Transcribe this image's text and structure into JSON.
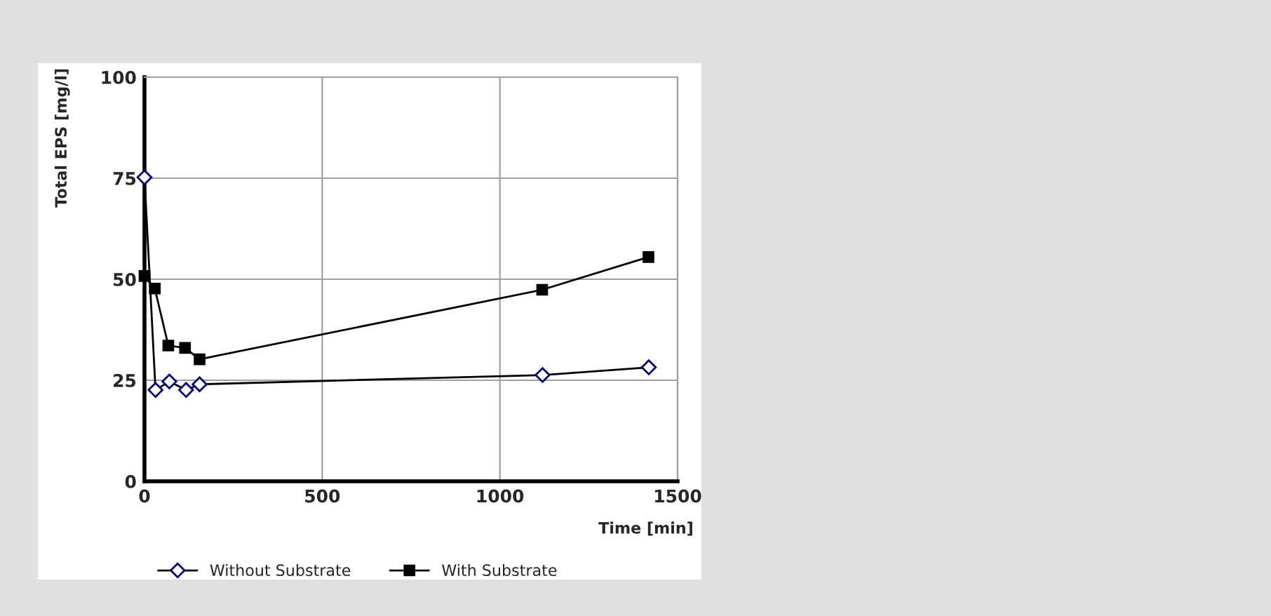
{
  "chart_data": {
    "type": "line",
    "xlabel": "Time [min]",
    "ylabel": "Total EPS [mg/l]",
    "xlim": [
      0,
      1500
    ],
    "xticks": [
      0,
      500,
      1000,
      1500
    ],
    "ylim": [
      0,
      100
    ],
    "yticks": [
      0,
      25,
      50,
      75,
      100
    ],
    "grid": true,
    "legend": "bottom",
    "series": [
      {
        "name": "Without Substrate",
        "color": "#000000",
        "marker": "diamond",
        "x": [
          0,
          31,
          70,
          117,
          155,
          1120,
          1419
        ],
        "values": [
          75.2,
          22.6,
          24.7,
          22.6,
          24.0,
          26.3,
          28.2
        ]
      },
      {
        "name": "With Substrate",
        "color": "#000000",
        "marker": "square",
        "x": [
          0,
          29,
          67,
          114,
          155,
          1119,
          1418
        ],
        "values": [
          50.8,
          47.7,
          33.6,
          33.0,
          30.2,
          47.4,
          55.5
        ]
      }
    ]
  }
}
